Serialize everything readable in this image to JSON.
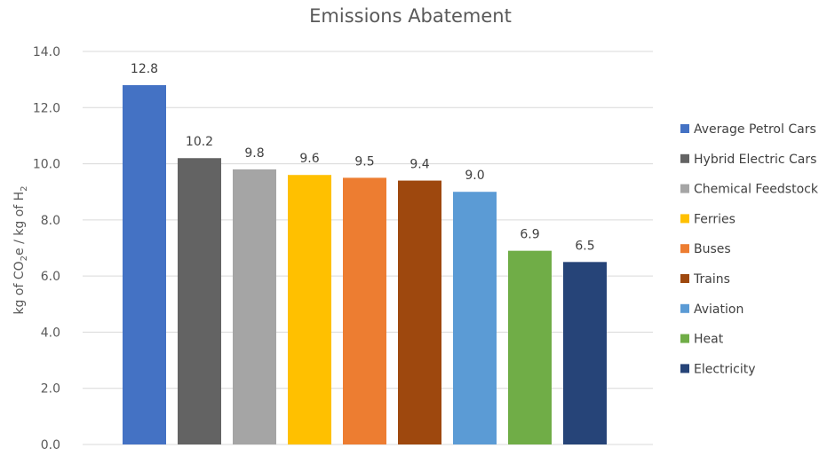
{
  "chart_data": {
    "type": "bar",
    "title": "Emissions Abatement",
    "ylabel_parts": [
      "kg of CO",
      "2",
      "e / kg of H",
      "2"
    ],
    "ylim": [
      0,
      14
    ],
    "yticks": [
      "0.0",
      "2.0",
      "4.0",
      "6.0",
      "8.0",
      "10.0",
      "12.0",
      "14.0"
    ],
    "grid": true,
    "legend_position": "right",
    "categories": [
      "Average Petrol Cars",
      "Hybrid Electric Cars",
      "Chemical Feedstock",
      "Ferries",
      "Buses",
      "Trains",
      "Aviation",
      "Heat",
      "Electricity"
    ],
    "values": [
      12.8,
      10.2,
      9.8,
      9.6,
      9.5,
      9.4,
      9.0,
      6.9,
      6.5
    ],
    "value_labels": [
      "12.8",
      "10.2",
      "9.8",
      "9.6",
      "9.5",
      "9.4",
      "9.0",
      "6.9",
      "6.5"
    ],
    "colors": [
      "#4472c4",
      "#636363",
      "#a5a5a5",
      "#ffc000",
      "#ed7d31",
      "#9e480e",
      "#5b9bd5",
      "#70ad47",
      "#264478"
    ]
  }
}
